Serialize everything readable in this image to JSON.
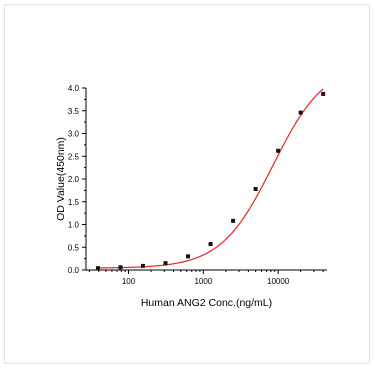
{
  "chart_data": {
    "type": "scatter",
    "xlabel": "Human ANG2 Conc.(ng/mL)",
    "ylabel": "OD Value(450nm)",
    "x_scale": "log",
    "xlim": [
      27,
      45000
    ],
    "ylim": [
      0,
      4.0
    ],
    "x_ticks": [
      100,
      1000,
      10000
    ],
    "x_tick_labels": [
      "100",
      "1000",
      "10000"
    ],
    "y_ticks": [
      0,
      0.5,
      1.0,
      1.5,
      2.0,
      2.5,
      3.0,
      3.5,
      4.0
    ],
    "y_tick_labels": [
      "0.0",
      "0.5",
      "1.0",
      "1.5",
      "2.0",
      "2.5",
      "3.0",
      "3.5",
      "4.0"
    ],
    "grid": false,
    "series": [
      {
        "x": [
          39,
          78,
          156,
          312,
          625,
          1250,
          2500,
          5000,
          10000,
          20000,
          40000
        ],
        "y": [
          0.04,
          0.06,
          0.09,
          0.15,
          0.3,
          0.57,
          1.08,
          1.78,
          2.62,
          3.46,
          3.87
        ]
      }
    ],
    "fit": {
      "model": "4PL",
      "bottom": 0.04,
      "top": 4.55,
      "ec50": 8500,
      "hill": 1.25
    },
    "colors": {
      "points": "#111111",
      "fit_line": "#e8251f"
    }
  }
}
